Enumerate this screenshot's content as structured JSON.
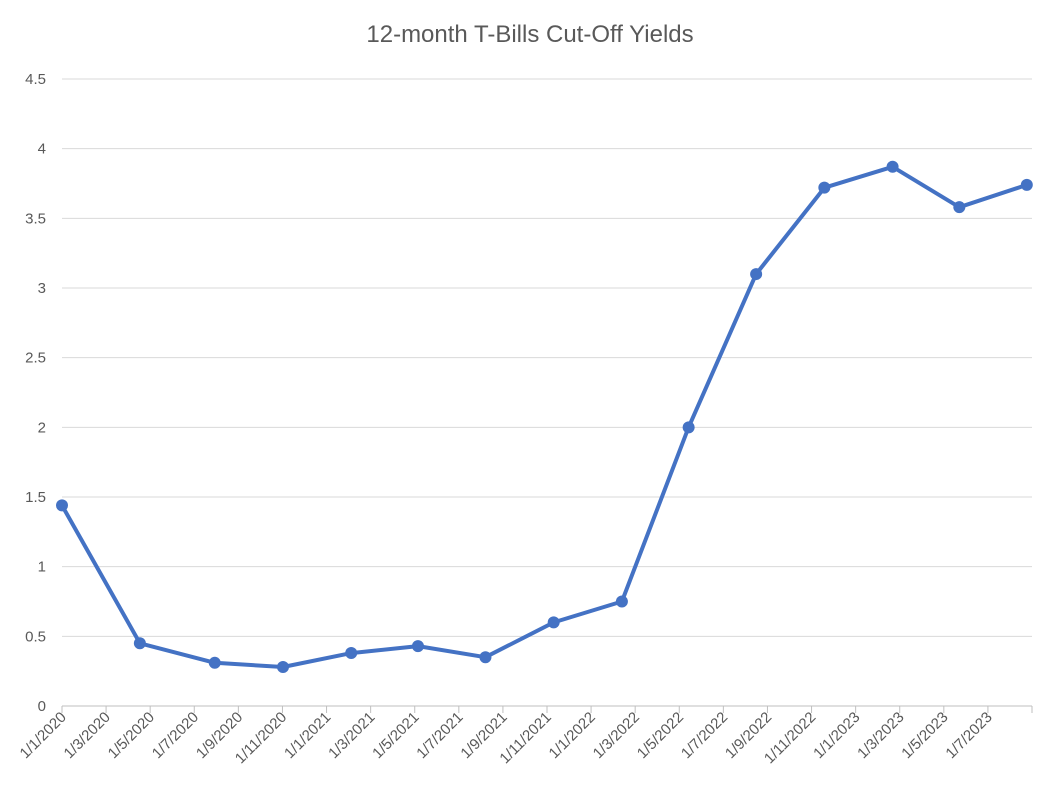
{
  "chart_data": {
    "type": "line",
    "title": "12-month T-Bills Cut-Off Yields",
    "xlabel": "",
    "ylabel": "",
    "ylim": [
      0,
      4.5
    ],
    "y_ticks": [
      "0",
      "0.5",
      "1",
      "1.5",
      "2",
      "2.5",
      "3",
      "3.5",
      "4",
      "4.5"
    ],
    "x_tick_labels": [
      "1/1/2020",
      "1/3/2020",
      "1/5/2020",
      "1/7/2020",
      "1/9/2020",
      "1/11/2020",
      "1/1/2021",
      "1/3/2021",
      "1/5/2021",
      "1/7/2021",
      "1/9/2021",
      "1/11/2021",
      "1/1/2022",
      "1/3/2022",
      "1/5/2022",
      "1/7/2022",
      "1/9/2022",
      "1/11/2022",
      "1/1/2023",
      "1/3/2023",
      "1/5/2023",
      "1/7/2023"
    ],
    "x_range": [
      "2020-01-01",
      "2023-08-01"
    ],
    "grid": true,
    "legend": "none",
    "series": [
      {
        "color": "#4472C4",
        "points": [
          {
            "x": "2020-01-01",
            "y": 1.44
          },
          {
            "x": "2020-04-15",
            "y": 0.45
          },
          {
            "x": "2020-07-25",
            "y": 0.31
          },
          {
            "x": "2020-10-25",
            "y": 0.28
          },
          {
            "x": "2021-01-25",
            "y": 0.38
          },
          {
            "x": "2021-04-25",
            "y": 0.43
          },
          {
            "x": "2021-07-25",
            "y": 0.35
          },
          {
            "x": "2021-10-25",
            "y": 0.6
          },
          {
            "x": "2022-01-25",
            "y": 0.75
          },
          {
            "x": "2022-04-25",
            "y": 2.0
          },
          {
            "x": "2022-07-25",
            "y": 3.1
          },
          {
            "x": "2022-10-25",
            "y": 3.72
          },
          {
            "x": "2023-01-25",
            "y": 3.87
          },
          {
            "x": "2023-04-25",
            "y": 3.58
          },
          {
            "x": "2023-07-25",
            "y": 3.74
          }
        ]
      }
    ]
  }
}
